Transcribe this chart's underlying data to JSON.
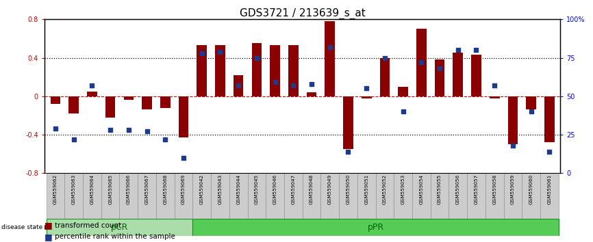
{
  "title": "GDS3721 / 213639_s_at",
  "samples": [
    "GSM559062",
    "GSM559063",
    "GSM559064",
    "GSM559065",
    "GSM559066",
    "GSM559067",
    "GSM559068",
    "GSM559069",
    "GSM559042",
    "GSM559043",
    "GSM559044",
    "GSM559045",
    "GSM559046",
    "GSM559047",
    "GSM559048",
    "GSM559049",
    "GSM559050",
    "GSM559051",
    "GSM559052",
    "GSM559053",
    "GSM559054",
    "GSM559055",
    "GSM559056",
    "GSM559057",
    "GSM559058",
    "GSM559059",
    "GSM559060",
    "GSM559061"
  ],
  "transformed_count": [
    -0.08,
    -0.18,
    0.05,
    -0.22,
    -0.04,
    -0.14,
    -0.12,
    -0.43,
    0.53,
    0.53,
    0.22,
    0.55,
    0.53,
    0.53,
    0.04,
    0.78,
    -0.55,
    -0.02,
    0.4,
    0.1,
    0.7,
    0.38,
    0.45,
    0.43,
    -0.02,
    -0.5,
    -0.14,
    -0.48
  ],
  "percentile_rank": [
    29,
    22,
    57,
    28,
    28,
    27,
    22,
    10,
    78,
    79,
    57,
    75,
    59,
    57,
    58,
    82,
    14,
    55,
    75,
    40,
    72,
    68,
    80,
    80,
    57,
    18,
    40,
    14
  ],
  "pCR_count": 8,
  "pPR_count": 20,
  "bar_color": "#8B0000",
  "dot_color": "#1E3A8A",
  "pCR_color": "#AADDAA",
  "pPR_color": "#55CC55",
  "ylim": [
    -0.8,
    0.8
  ],
  "yticks": [
    -0.8,
    -0.4,
    0.0,
    0.4,
    0.8
  ],
  "right_yticks": [
    0,
    25,
    50,
    75,
    100
  ],
  "right_ytick_labels": [
    "0",
    "25",
    "50",
    "75",
    "100%"
  ],
  "bar_width": 0.55
}
